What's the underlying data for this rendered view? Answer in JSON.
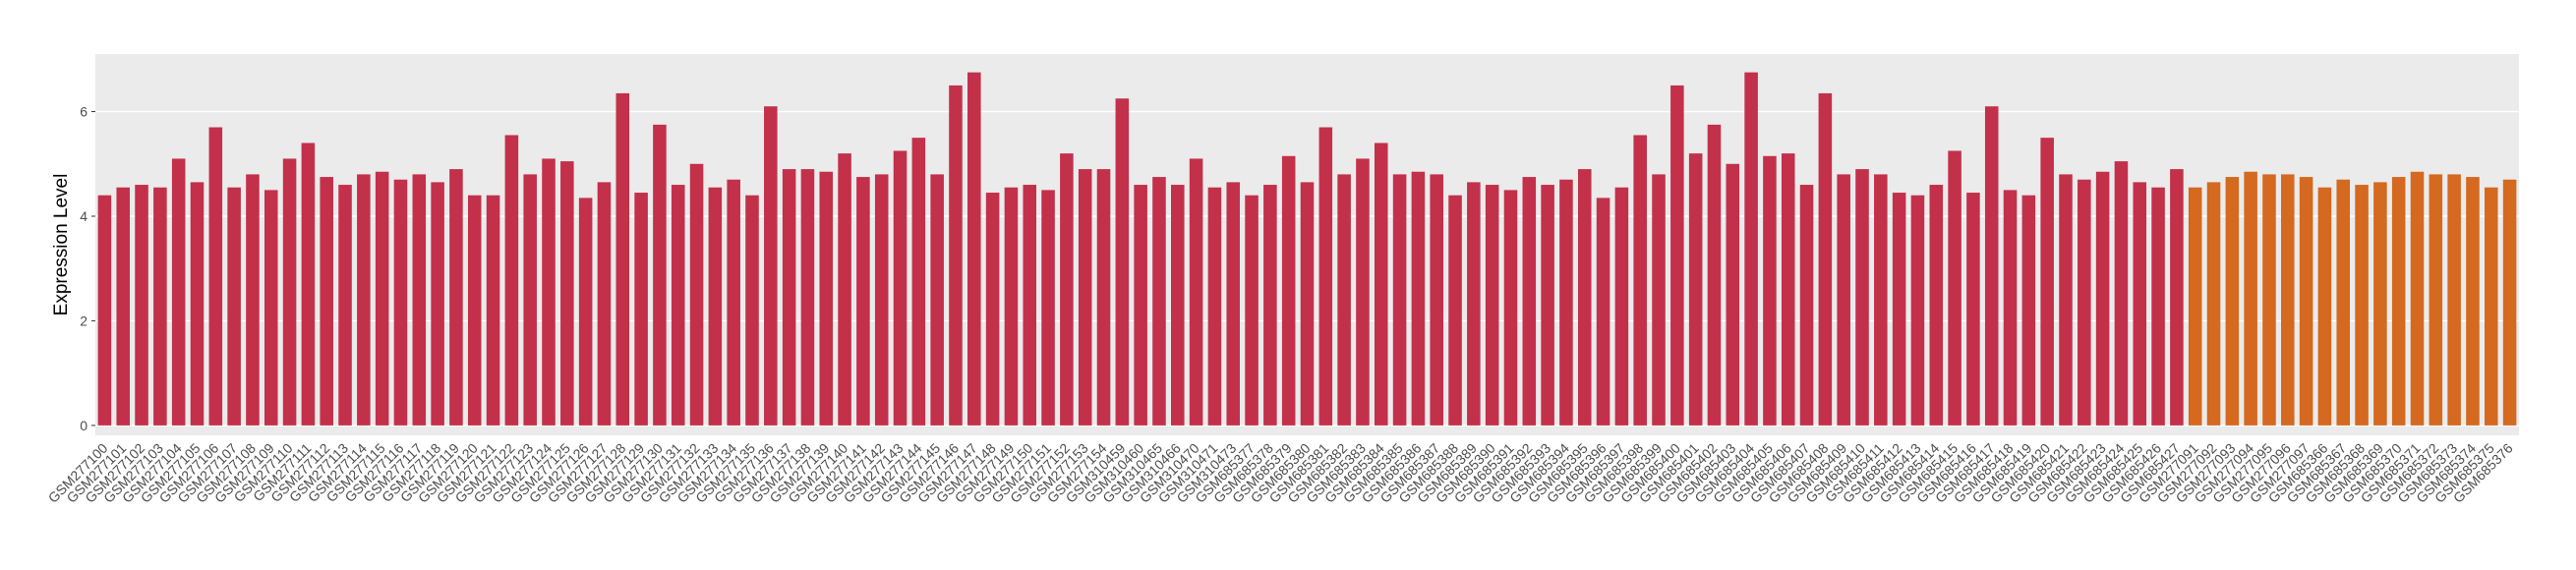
{
  "chart_data": {
    "type": "bar",
    "y_label": "Expression Level",
    "categories": [
      "GSM277100",
      "GSM277101",
      "GSM277102",
      "GSM277103",
      "GSM277104",
      "GSM277105",
      "GSM277106",
      "GSM277107",
      "GSM277108",
      "GSM277109",
      "GSM277110",
      "GSM277111",
      "GSM277112",
      "GSM277113",
      "GSM277114",
      "GSM277115",
      "GSM277116",
      "GSM277117",
      "GSM277118",
      "GSM277119",
      "GSM277120",
      "GSM277121",
      "GSM277122",
      "GSM277123",
      "GSM277124",
      "GSM277125",
      "GSM277126",
      "GSM277127",
      "GSM277128",
      "GSM277129",
      "GSM277130",
      "GSM277131",
      "GSM277132",
      "GSM277133",
      "GSM277134",
      "GSM277135",
      "GSM277136",
      "GSM277137",
      "GSM277138",
      "GSM277139",
      "GSM277140",
      "GSM277141",
      "GSM277142",
      "GSM277143",
      "GSM277144",
      "GSM277145",
      "GSM277146",
      "GSM277147",
      "GSM277148",
      "GSM277149",
      "GSM277150",
      "GSM277151",
      "GSM277152",
      "GSM277153",
      "GSM277154",
      "GSM310459",
      "GSM310460",
      "GSM310465",
      "GSM310466",
      "GSM310470",
      "GSM310471",
      "GSM310473",
      "GSM685377",
      "GSM685378",
      "GSM685379",
      "GSM685380",
      "GSM685381",
      "GSM685382",
      "GSM685383",
      "GSM685384",
      "GSM685385",
      "GSM685386",
      "GSM685387",
      "GSM685388",
      "GSM685389",
      "GSM685390",
      "GSM685391",
      "GSM685392",
      "GSM685393",
      "GSM685394",
      "GSM685395",
      "GSM685396",
      "GSM685397",
      "GSM685398",
      "GSM685399",
      "GSM685400",
      "GSM685401",
      "GSM685402",
      "GSM685403",
      "GSM685404",
      "GSM685405",
      "GSM685406",
      "GSM685407",
      "GSM685408",
      "GSM685409",
      "GSM685410",
      "GSM685411",
      "GSM685412",
      "GSM685413",
      "GSM685414",
      "GSM685415",
      "GSM685416",
      "GSM685417",
      "GSM685418",
      "GSM685419",
      "GSM685420",
      "GSM685421",
      "GSM685422",
      "GSM685423",
      "GSM685424",
      "GSM685425",
      "GSM685426",
      "GSM685427",
      "GSM277091",
      "GSM277092",
      "GSM277093",
      "GSM277094",
      "GSM277095",
      "GSM277096",
      "GSM277097",
      "GSM685366",
      "GSM685367",
      "GSM685368",
      "GSM685369",
      "GSM685370",
      "GSM685371",
      "GSM685372",
      "GSM685373",
      "GSM685374",
      "GSM685375",
      "GSM685376"
    ],
    "series": [
      {
        "color": "#c3304a",
        "values": [
          4.4,
          4.55,
          4.6,
          4.55,
          5.1,
          4.65,
          5.7,
          4.55,
          4.8,
          4.5,
          5.1,
          5.4,
          4.75,
          4.6,
          4.8,
          4.85,
          4.7,
          4.8,
          4.65,
          4.9,
          4.4,
          4.4,
          5.55,
          4.8,
          5.1,
          5.05,
          4.35,
          4.65,
          6.35,
          4.45,
          5.75,
          4.6,
          5.0,
          4.55,
          4.7,
          4.4,
          6.1,
          4.9,
          4.9,
          4.85,
          5.2,
          4.75,
          4.8,
          5.25,
          5.5,
          4.8,
          6.5,
          6.75,
          4.45,
          4.55,
          4.6,
          4.5,
          5.2,
          4.9,
          4.9,
          6.25,
          4.6,
          4.75,
          4.6,
          5.1,
          4.55,
          4.65,
          4.4,
          4.6,
          5.15,
          4.65,
          5.7,
          4.8,
          5.1,
          5.4,
          4.8,
          4.85,
          4.8,
          4.4,
          4.65,
          4.6,
          4.5,
          4.75,
          4.6,
          4.7,
          4.9,
          4.35,
          4.55,
          5.55,
          4.8,
          6.5,
          5.2,
          5.75,
          5.0,
          6.75,
          5.15,
          5.2,
          4.6,
          6.35,
          4.8,
          4.9,
          4.8,
          4.45,
          4.4,
          4.6,
          5.25,
          4.45,
          6.1,
          4.5,
          4.4,
          5.5,
          4.8,
          4.7,
          4.85,
          5.05,
          4.65,
          4.55,
          4.9,
          null,
          null,
          null,
          null,
          null,
          null,
          null,
          null,
          null,
          null,
          null,
          null,
          null,
          null,
          null,
          null,
          null,
          null
        ]
      },
      {
        "color": "#d4691f",
        "values": [
          null,
          null,
          null,
          null,
          null,
          null,
          null,
          null,
          null,
          null,
          null,
          null,
          null,
          null,
          null,
          null,
          null,
          null,
          null,
          null,
          null,
          null,
          null,
          null,
          null,
          null,
          null,
          null,
          null,
          null,
          null,
          null,
          null,
          null,
          null,
          null,
          null,
          null,
          null,
          null,
          null,
          null,
          null,
          null,
          null,
          null,
          null,
          null,
          null,
          null,
          null,
          null,
          null,
          null,
          null,
          null,
          null,
          null,
          null,
          null,
          null,
          null,
          null,
          null,
          null,
          null,
          null,
          null,
          null,
          null,
          null,
          null,
          null,
          null,
          null,
          null,
          null,
          null,
          null,
          null,
          null,
          null,
          null,
          null,
          null,
          null,
          null,
          null,
          null,
          null,
          null,
          null,
          null,
          null,
          null,
          null,
          null,
          null,
          null,
          null,
          null,
          null,
          null,
          null,
          null,
          null,
          null,
          null,
          null,
          null,
          null,
          null,
          null,
          4.55,
          4.65,
          4.75,
          4.85,
          4.8,
          4.8,
          4.75,
          4.55,
          4.7,
          4.6,
          4.65,
          4.75,
          4.85,
          4.8,
          4.8,
          4.75,
          4.55,
          4.7
        ]
      }
    ],
    "ylim": [
      -0.19,
      7.1
    ],
    "yticks": [
      0,
      2,
      4,
      6
    ],
    "grid": true
  }
}
